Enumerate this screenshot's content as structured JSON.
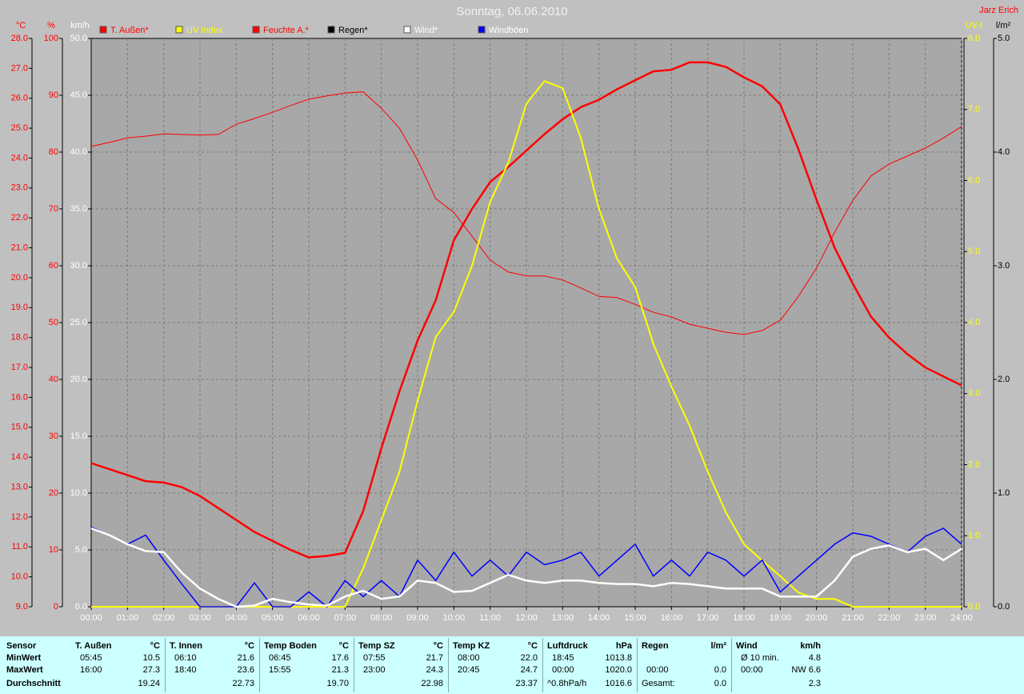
{
  "chart_data": {
    "type": "line",
    "title": "Sonntag, 06.06.2010",
    "author": "Jarz Erich",
    "xlim": [
      0,
      24
    ],
    "xticks": [
      {
        "value": 0,
        "label": "00:00"
      },
      {
        "value": 1,
        "label": "01:00"
      },
      {
        "value": 2,
        "label": "02:00"
      },
      {
        "value": 3,
        "label": "03:00"
      },
      {
        "value": 4,
        "label": "04:00"
      },
      {
        "value": 5,
        "label": "05:00"
      },
      {
        "value": 6,
        "label": "06:00"
      },
      {
        "value": 7,
        "label": "07:00"
      },
      {
        "value": 8,
        "label": "08:00"
      },
      {
        "value": 9,
        "label": "09:00"
      },
      {
        "value": 10,
        "label": "10:00"
      },
      {
        "value": 11,
        "label": "11:00"
      },
      {
        "value": 12,
        "label": "12:00"
      },
      {
        "value": 13,
        "label": "13:00"
      },
      {
        "value": 14,
        "label": "14:00"
      },
      {
        "value": 15,
        "label": "15:00"
      },
      {
        "value": 16,
        "label": "16:00"
      },
      {
        "value": 17,
        "label": "17:00"
      },
      {
        "value": 18,
        "label": "18:00"
      },
      {
        "value": 19,
        "label": "19:00"
      },
      {
        "value": 20,
        "label": "20:00"
      },
      {
        "value": 21,
        "label": "21:00"
      },
      {
        "value": 22,
        "label": "22:00"
      },
      {
        "value": 23,
        "label": "23:00"
      },
      {
        "value": 24,
        "label": "24:00"
      }
    ],
    "grid": true,
    "grid_axis": 1,
    "axes": [
      {
        "label": "°C",
        "side": "left",
        "color": "#ff0000",
        "ylim": [
          9,
          28
        ],
        "yticks": [
          {
            "value": 9,
            "label": "9.0"
          },
          {
            "value": 10,
            "label": "10.0"
          },
          {
            "value": 11,
            "label": "11.0"
          },
          {
            "value": 12,
            "label": "12.0"
          },
          {
            "value": 13,
            "label": "13.0"
          },
          {
            "value": 14,
            "label": "14.0"
          },
          {
            "value": 15,
            "label": "15.0"
          },
          {
            "value": 16,
            "label": "16.0"
          },
          {
            "value": 17,
            "label": "17.0"
          },
          {
            "value": 18,
            "label": "18.0"
          },
          {
            "value": 19,
            "label": "19.0"
          },
          {
            "value": 20,
            "label": "20.0"
          },
          {
            "value": 21,
            "label": "21.0"
          },
          {
            "value": 22,
            "label": "22.0"
          },
          {
            "value": 23,
            "label": "23.0"
          },
          {
            "value": 24,
            "label": "24.0"
          },
          {
            "value": 25,
            "label": "25.0"
          },
          {
            "value": 26,
            "label": "26.0"
          },
          {
            "value": 27,
            "label": "27.0"
          },
          {
            "value": 28,
            "label": "28.0"
          }
        ]
      },
      {
        "label": "%",
        "side": "left",
        "color": "#ff0000",
        "ylim": [
          0,
          100
        ],
        "yticks": [
          0,
          10,
          20,
          30,
          40,
          50,
          60,
          70,
          80,
          90,
          100
        ]
      },
      {
        "label": "km/h",
        "side": "left",
        "color": "#ffffff",
        "ylim": [
          0,
          50
        ],
        "yticks": [
          {
            "value": 0,
            "label": "0.0"
          },
          {
            "value": 5,
            "label": "5.0"
          },
          {
            "value": 10,
            "label": "10.0"
          },
          {
            "value": 15,
            "label": "15.0"
          },
          {
            "value": 20,
            "label": "20.0"
          },
          {
            "value": 25,
            "label": "25.0"
          },
          {
            "value": 30,
            "label": "30.0"
          },
          {
            "value": 35,
            "label": "35.0"
          },
          {
            "value": 40,
            "label": "40.0"
          },
          {
            "value": 45,
            "label": "45.0"
          },
          {
            "value": 50,
            "label": "50.0"
          }
        ]
      },
      {
        "label": "UV-I",
        "side": "right",
        "color": "#ffff00",
        "ylim": [
          0,
          8
        ],
        "yticks": [
          {
            "value": 0,
            "label": "0.0"
          },
          {
            "value": 1,
            "label": "1.0"
          },
          {
            "value": 2,
            "label": "2.0"
          },
          {
            "value": 3,
            "label": "3.0"
          },
          {
            "value": 4,
            "label": "4.0"
          },
          {
            "value": 5,
            "label": "5.0"
          },
          {
            "value": 6,
            "label": "6.0"
          },
          {
            "value": 7,
            "label": "7.0"
          },
          {
            "value": 8,
            "label": "8.0"
          }
        ]
      },
      {
        "label": "l/m²",
        "side": "right",
        "color": "#000000",
        "ylim": [
          0,
          5
        ],
        "yticks": [
          {
            "value": 0,
            "label": "0.0"
          },
          {
            "value": 1,
            "label": "1.0"
          },
          {
            "value": 2,
            "label": "2.0"
          },
          {
            "value": 3,
            "label": "3.0"
          },
          {
            "value": 4,
            "label": "4.0"
          },
          {
            "value": 5,
            "label": "5.0"
          }
        ]
      }
    ],
    "x": [
      0,
      0.5,
      1,
      1.5,
      2,
      2.5,
      3,
      3.5,
      4,
      4.5,
      5,
      5.5,
      6,
      6.5,
      7,
      7.5,
      8,
      8.5,
      9,
      9.5,
      10,
      10.5,
      11,
      11.5,
      12,
      12.5,
      13,
      13.5,
      14,
      14.5,
      15,
      15.5,
      16,
      16.5,
      17,
      17.5,
      18,
      18.5,
      19,
      19.5,
      20,
      20.5,
      21,
      21.5,
      22,
      22.5,
      23,
      23.5,
      24
    ],
    "series": [
      {
        "name": "T. Außen*",
        "color": "#ff0000",
        "label_color": "#ff0000",
        "width": 2.5,
        "axis": 0,
        "values": [
          13.8,
          13.6,
          13.4,
          13.2,
          13.15,
          13.0,
          12.7,
          12.3,
          11.9,
          11.5,
          11.2,
          10.9,
          10.65,
          10.7,
          10.8,
          12.2,
          14.3,
          16.2,
          17.9,
          19.25,
          21.25,
          22.3,
          23.2,
          23.7,
          24.25,
          24.8,
          25.3,
          25.7,
          25.95,
          26.3,
          26.6,
          26.9,
          26.95,
          27.2,
          27.2,
          27.05,
          26.7,
          26.4,
          25.8,
          24.3,
          22.6,
          21.0,
          19.8,
          18.7,
          18.0,
          17.45,
          17.0,
          16.7,
          16.4
        ]
      },
      {
        "name": "UV Index",
        "color": "#ffff00",
        "label_color": "#ffff00",
        "width": 2,
        "axis": 3,
        "values": [
          0,
          0,
          0,
          0,
          0,
          0,
          0,
          0,
          0,
          0,
          0,
          0,
          0,
          0,
          0,
          0.54,
          1.22,
          1.9,
          2.9,
          3.8,
          4.15,
          4.8,
          5.7,
          6.25,
          7.08,
          7.4,
          7.3,
          6.6,
          5.6,
          4.9,
          4.5,
          3.7,
          3.1,
          2.55,
          1.9,
          1.33,
          0.88,
          0.65,
          0.43,
          0.2,
          0.11,
          0.11,
          0,
          0,
          0,
          0,
          0,
          0,
          0
        ]
      },
      {
        "name": "Feuchte A.*",
        "color": "#ff0000",
        "label_color": "#ff0000",
        "width": 1,
        "axis": 1,
        "values": [
          81.0,
          81.7,
          82.5,
          82.8,
          83.2,
          83.1,
          83.0,
          83.1,
          84.9,
          85.9,
          87.0,
          88.2,
          89.3,
          89.9,
          90.4,
          90.6,
          87.7,
          84.2,
          78.6,
          71.8,
          69.4,
          65.2,
          61.0,
          58.9,
          58.2,
          58.2,
          57.5,
          56.1,
          54.6,
          54.4,
          53.2,
          51.8,
          51.0,
          49.7,
          49.0,
          48.3,
          47.9,
          48.6,
          50.4,
          54.6,
          59.6,
          65.9,
          71.5,
          75.8,
          77.9,
          79.3,
          80.7,
          82.5,
          84.5
        ]
      },
      {
        "name": "Regen*",
        "color": "#000000",
        "label_color": "#000000",
        "width": 1,
        "axis": 4,
        "values": [
          0,
          0,
          0,
          0,
          0,
          0,
          0,
          0,
          0,
          0,
          0,
          0,
          0,
          0,
          0,
          0,
          0,
          0,
          0,
          0,
          0,
          0,
          0,
          0,
          0,
          0,
          0,
          0,
          0,
          0,
          0,
          0,
          0,
          0,
          0,
          0,
          0,
          0,
          0,
          0,
          0,
          0,
          0,
          0,
          0,
          0,
          0,
          0,
          0
        ]
      },
      {
        "name": "Wind*",
        "color": "#ffffff",
        "label_color": "#ffffff",
        "width": 2.5,
        "axis": 2,
        "values": [
          6.9,
          6.3,
          5.5,
          4.9,
          4.8,
          3.0,
          1.6,
          0.7,
          0,
          0.1,
          0.7,
          0.4,
          0.2,
          0.1,
          0.9,
          1.4,
          0.7,
          0.9,
          2.3,
          2.1,
          1.3,
          1.4,
          2.1,
          2.8,
          2.3,
          2.1,
          2.3,
          2.3,
          2.1,
          2.0,
          2.0,
          1.8,
          2.1,
          2.0,
          1.8,
          1.6,
          1.6,
          1.6,
          0.9,
          0.9,
          0.9,
          2.3,
          4.4,
          5.1,
          5.4,
          4.8,
          5.1,
          4.1,
          5.1
        ]
      },
      {
        "name": "Windböen",
        "color": "#0000ff",
        "label_color": "#ffffff",
        "width": 1.5,
        "axis": 2,
        "values": [
          7.0,
          6.3,
          5.5,
          6.3,
          4.1,
          2.0,
          0,
          0,
          0,
          2.1,
          0,
          0,
          1.3,
          0,
          2.3,
          0.9,
          2.3,
          0.9,
          4.1,
          2.3,
          4.8,
          2.7,
          4.1,
          2.7,
          4.8,
          3.7,
          4.1,
          4.8,
          2.7,
          4.1,
          5.5,
          2.7,
          4.1,
          2.7,
          4.8,
          4.1,
          2.7,
          4.1,
          1.3,
          2.7,
          4.1,
          5.5,
          6.5,
          6.2,
          5.5,
          4.8,
          6.2,
          6.9,
          5.5
        ]
      }
    ]
  },
  "table": {
    "header": "Sensor",
    "row_labels": [
      "MinWert",
      "MaxWert",
      "Durchschnitt"
    ],
    "groups": [
      {
        "name": "T. Außen",
        "unit": "°C",
        "rows": [
          [
            "05:45",
            "10.5"
          ],
          [
            "16:00",
            "27.3"
          ],
          [
            null,
            "19.24"
          ]
        ]
      },
      {
        "name": "T. Innen",
        "unit": "°C",
        "rows": [
          [
            "06:10",
            "21.6"
          ],
          [
            "18:40",
            "23.6"
          ],
          [
            null,
            "22.73"
          ]
        ]
      },
      {
        "name": "Temp Boden",
        "unit": "°C",
        "rows": [
          [
            "06:45",
            "17.6"
          ],
          [
            "15:55",
            "21.3"
          ],
          [
            null,
            "19.70"
          ]
        ]
      },
      {
        "name": "Temp SZ",
        "unit": "°C",
        "rows": [
          [
            "07:55",
            "21.7"
          ],
          [
            "23:00",
            "24.3"
          ],
          [
            null,
            "22.98"
          ]
        ]
      },
      {
        "name": "Temp KZ",
        "unit": "°C",
        "rows": [
          [
            "08:00",
            "22.0"
          ],
          [
            "20:45",
            "24.7"
          ],
          [
            null,
            "23.37"
          ]
        ]
      },
      {
        "name": "Luftdruck",
        "unit": "hPa",
        "rows": [
          [
            "18:45",
            "1013.8"
          ],
          [
            "00:00",
            "1020.0"
          ],
          [
            "^0.8hPa/h",
            "1016.6"
          ]
        ]
      },
      {
        "name": "Regen",
        "unit": "l/m²",
        "rows": [
          [
            null,
            null
          ],
          [
            "00:00",
            "0.0"
          ],
          [
            "Gesamt:",
            "0.0"
          ]
        ]
      },
      {
        "name": "Wind",
        "unit": "km/h",
        "rows": [
          [
            "Ø 10 min.",
            "4.8"
          ],
          [
            "00:00",
            "NW 6.6"
          ],
          [
            null,
            "2.3"
          ]
        ]
      }
    ]
  }
}
